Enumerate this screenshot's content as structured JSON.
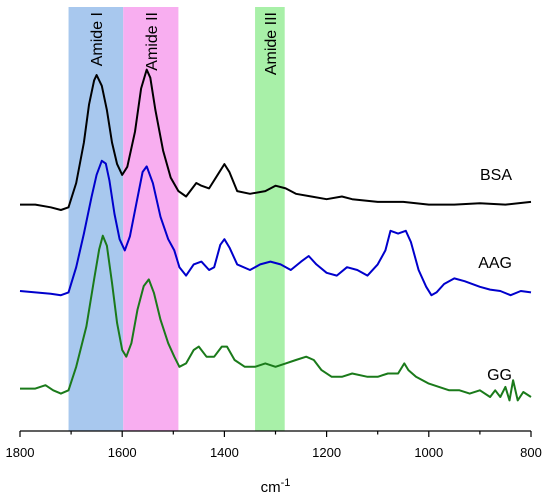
{
  "chart_data": {
    "type": "line",
    "xlabel": "cm",
    "xlabel_superscript": "-1",
    "xlim": [
      1800,
      800
    ],
    "x_reversed": true,
    "xticks": [
      1800,
      1600,
      1400,
      1200,
      1000,
      800
    ],
    "y_axis_shown": false,
    "grid": false,
    "legend": "none",
    "bands": [
      {
        "label": "Amide I",
        "x_start": 1705,
        "x_end": 1598,
        "color": "#a8c8ee"
      },
      {
        "label": "Amide II",
        "x_start": 1598,
        "x_end": 1490,
        "color": "#f8aef0"
      },
      {
        "label": "Amide III",
        "x_start": 1340,
        "x_end": 1282,
        "color": "#a8f0a8"
      }
    ],
    "series": [
      {
        "name": "BSA",
        "color": "#000000",
        "points": [
          [
            1800,
            0.04
          ],
          [
            1770,
            0.04
          ],
          [
            1740,
            0.02
          ],
          [
            1720,
            0.0
          ],
          [
            1705,
            0.02
          ],
          [
            1690,
            0.2
          ],
          [
            1675,
            0.5
          ],
          [
            1665,
            0.78
          ],
          [
            1655,
            0.96
          ],
          [
            1650,
            1.0
          ],
          [
            1640,
            0.92
          ],
          [
            1630,
            0.74
          ],
          [
            1620,
            0.5
          ],
          [
            1610,
            0.34
          ],
          [
            1600,
            0.26
          ],
          [
            1590,
            0.32
          ],
          [
            1575,
            0.58
          ],
          [
            1563,
            0.9
          ],
          [
            1552,
            1.04
          ],
          [
            1545,
            0.98
          ],
          [
            1535,
            0.74
          ],
          [
            1520,
            0.44
          ],
          [
            1505,
            0.24
          ],
          [
            1490,
            0.14
          ],
          [
            1475,
            0.1
          ],
          [
            1455,
            0.2
          ],
          [
            1445,
            0.18
          ],
          [
            1430,
            0.16
          ],
          [
            1410,
            0.28
          ],
          [
            1400,
            0.34
          ],
          [
            1390,
            0.28
          ],
          [
            1375,
            0.14
          ],
          [
            1350,
            0.12
          ],
          [
            1320,
            0.14
          ],
          [
            1300,
            0.18
          ],
          [
            1280,
            0.16
          ],
          [
            1260,
            0.12
          ],
          [
            1230,
            0.1
          ],
          [
            1200,
            0.08
          ],
          [
            1170,
            0.1
          ],
          [
            1150,
            0.08
          ],
          [
            1100,
            0.06
          ],
          [
            1050,
            0.06
          ],
          [
            1000,
            0.04
          ],
          [
            950,
            0.04
          ],
          [
            900,
            0.05
          ],
          [
            850,
            0.04
          ],
          [
            800,
            0.06
          ]
        ]
      },
      {
        "name": "AAG",
        "color": "#0000cc",
        "points": [
          [
            1800,
            0.05
          ],
          [
            1770,
            0.04
          ],
          [
            1740,
            0.03
          ],
          [
            1720,
            0.02
          ],
          [
            1705,
            0.04
          ],
          [
            1690,
            0.22
          ],
          [
            1675,
            0.46
          ],
          [
            1660,
            0.72
          ],
          [
            1650,
            0.88
          ],
          [
            1640,
            0.98
          ],
          [
            1632,
            0.96
          ],
          [
            1625,
            0.84
          ],
          [
            1615,
            0.6
          ],
          [
            1605,
            0.42
          ],
          [
            1595,
            0.34
          ],
          [
            1585,
            0.44
          ],
          [
            1572,
            0.68
          ],
          [
            1560,
            0.9
          ],
          [
            1552,
            0.94
          ],
          [
            1540,
            0.82
          ],
          [
            1525,
            0.58
          ],
          [
            1510,
            0.42
          ],
          [
            1498,
            0.34
          ],
          [
            1488,
            0.22
          ],
          [
            1475,
            0.16
          ],
          [
            1460,
            0.24
          ],
          [
            1445,
            0.26
          ],
          [
            1430,
            0.2
          ],
          [
            1420,
            0.22
          ],
          [
            1408,
            0.38
          ],
          [
            1400,
            0.42
          ],
          [
            1390,
            0.36
          ],
          [
            1375,
            0.24
          ],
          [
            1350,
            0.2
          ],
          [
            1330,
            0.24
          ],
          [
            1310,
            0.26
          ],
          [
            1290,
            0.24
          ],
          [
            1270,
            0.2
          ],
          [
            1250,
            0.26
          ],
          [
            1235,
            0.3
          ],
          [
            1220,
            0.24
          ],
          [
            1200,
            0.18
          ],
          [
            1180,
            0.16
          ],
          [
            1160,
            0.22
          ],
          [
            1140,
            0.2
          ],
          [
            1120,
            0.16
          ],
          [
            1100,
            0.24
          ],
          [
            1085,
            0.34
          ],
          [
            1075,
            0.48
          ],
          [
            1060,
            0.46
          ],
          [
            1045,
            0.48
          ],
          [
            1035,
            0.4
          ],
          [
            1020,
            0.2
          ],
          [
            1005,
            0.08
          ],
          [
            995,
            0.02
          ],
          [
            985,
            0.04
          ],
          [
            970,
            0.1
          ],
          [
            950,
            0.14
          ],
          [
            930,
            0.12
          ],
          [
            900,
            0.08
          ],
          [
            880,
            0.06
          ],
          [
            860,
            0.05
          ],
          [
            840,
            0.02
          ],
          [
            820,
            0.05
          ],
          [
            800,
            0.04
          ]
        ]
      },
      {
        "name": "GG",
        "color": "#1a7a1a",
        "points": [
          [
            1800,
            0.05
          ],
          [
            1770,
            0.05
          ],
          [
            1750,
            0.07
          ],
          [
            1735,
            0.04
          ],
          [
            1720,
            0.02
          ],
          [
            1705,
            0.04
          ],
          [
            1690,
            0.18
          ],
          [
            1670,
            0.42
          ],
          [
            1655,
            0.7
          ],
          [
            1645,
            0.88
          ],
          [
            1638,
            0.96
          ],
          [
            1630,
            0.9
          ],
          [
            1620,
            0.68
          ],
          [
            1610,
            0.44
          ],
          [
            1600,
            0.28
          ],
          [
            1592,
            0.24
          ],
          [
            1582,
            0.32
          ],
          [
            1570,
            0.52
          ],
          [
            1558,
            0.66
          ],
          [
            1548,
            0.7
          ],
          [
            1538,
            0.62
          ],
          [
            1525,
            0.46
          ],
          [
            1510,
            0.32
          ],
          [
            1498,
            0.24
          ],
          [
            1488,
            0.18
          ],
          [
            1475,
            0.2
          ],
          [
            1460,
            0.28
          ],
          [
            1450,
            0.3
          ],
          [
            1435,
            0.24
          ],
          [
            1420,
            0.24
          ],
          [
            1405,
            0.3
          ],
          [
            1395,
            0.3
          ],
          [
            1380,
            0.22
          ],
          [
            1360,
            0.18
          ],
          [
            1340,
            0.18
          ],
          [
            1320,
            0.2
          ],
          [
            1300,
            0.18
          ],
          [
            1280,
            0.2
          ],
          [
            1260,
            0.22
          ],
          [
            1240,
            0.24
          ],
          [
            1225,
            0.22
          ],
          [
            1210,
            0.16
          ],
          [
            1190,
            0.12
          ],
          [
            1170,
            0.12
          ],
          [
            1150,
            0.14
          ],
          [
            1120,
            0.12
          ],
          [
            1100,
            0.12
          ],
          [
            1080,
            0.14
          ],
          [
            1060,
            0.14
          ],
          [
            1048,
            0.2
          ],
          [
            1040,
            0.16
          ],
          [
            1025,
            0.12
          ],
          [
            1000,
            0.08
          ],
          [
            980,
            0.06
          ],
          [
            960,
            0.04
          ],
          [
            940,
            0.04
          ],
          [
            920,
            0.02
          ],
          [
            900,
            0.04
          ],
          [
            880,
            0.0
          ],
          [
            870,
            0.04
          ],
          [
            860,
            0.0
          ],
          [
            850,
            0.06
          ],
          [
            842,
            -0.02
          ],
          [
            835,
            0.1
          ],
          [
            826,
            -0.02
          ],
          [
            815,
            0.03
          ],
          [
            800,
            0.0
          ]
        ]
      }
    ]
  }
}
